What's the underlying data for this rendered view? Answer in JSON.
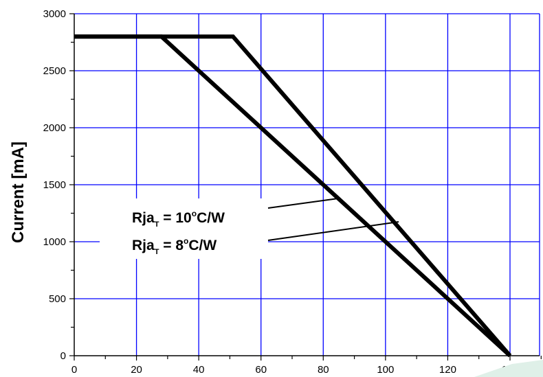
{
  "chart_data": {
    "type": "line",
    "ylabel": "Current [mA]",
    "xlabel": "",
    "xlim": [
      0,
      140
    ],
    "ylim": [
      0,
      3000
    ],
    "x_ticks": [
      0,
      20,
      40,
      60,
      80,
      100,
      120,
      140
    ],
    "y_ticks": [
      0,
      500,
      1000,
      1500,
      2000,
      2500,
      3000
    ],
    "grid": true,
    "grid_color": "#0000ff",
    "line_color": "#000000",
    "series": [
      {
        "name": "Rja_T = 10°C/W",
        "x": [
          0,
          51,
          140
        ],
        "y": [
          2800,
          2800,
          0
        ]
      },
      {
        "name": "Rja_T = 8°C/W",
        "x": [
          0,
          28,
          140
        ],
        "y": [
          2800,
          2800,
          0
        ]
      }
    ],
    "annotations": [
      {
        "base": "Rja",
        "sub": "T",
        "eq": " = 10",
        "sup": "o",
        "unit": "C/W"
      },
      {
        "base": "Rja",
        "sub": "T",
        "eq": " = 8",
        "sup": "o",
        "unit": "C/W"
      }
    ]
  }
}
